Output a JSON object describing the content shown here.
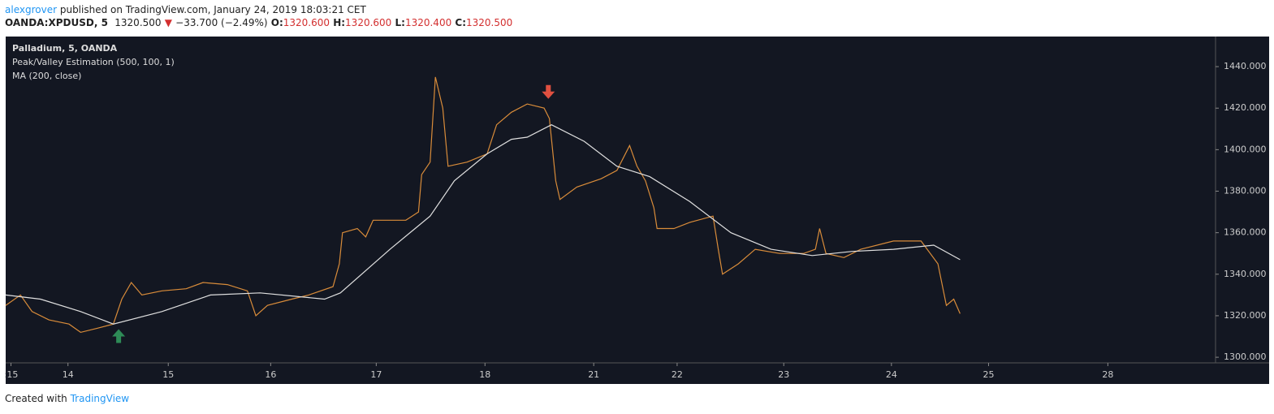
{
  "header": {
    "author": "alexgrover",
    "published": "published on TradingView.com, January 24, 2019 18:03:21 CET",
    "symbol": "OANDA:XPDUSD, 5",
    "last": "1320.500",
    "arrow": "▼",
    "change": "−33.700 (−2.49%)",
    "o_label": "O:",
    "o": "1320.600",
    "h_label": "H:",
    "h": "1320.600",
    "l_label": "L:",
    "l": "1320.400",
    "c_label": "C:",
    "c": "1320.500"
  },
  "footer": {
    "created": "Created with",
    "brand": "TradingView"
  },
  "chart_data": {
    "type": "line",
    "legend": [
      "Palladium, 5, OANDA",
      "Peak/Valley Estimation (500, 100, 1)",
      "MA (200, close)"
    ],
    "xlim": [
      -0.59,
      10.87
    ],
    "ylim": [
      1297.3,
      1454.5
    ],
    "xticks": [
      {
        "value": -0.54,
        "label": ":15"
      },
      {
        "value": 0,
        "label": "14"
      },
      {
        "value": 0.95,
        "label": "15"
      },
      {
        "value": 1.92,
        "label": "16"
      },
      {
        "value": 2.92,
        "label": "17"
      },
      {
        "value": 3.95,
        "label": "18"
      },
      {
        "value": 4.98,
        "label": "21"
      },
      {
        "value": 5.77,
        "label": "22"
      },
      {
        "value": 6.78,
        "label": "23"
      },
      {
        "value": 7.8,
        "label": "24"
      },
      {
        "value": 8.72,
        "label": "25"
      },
      {
        "value": 9.85,
        "label": "28"
      }
    ],
    "yticks": [
      {
        "value": 1300,
        "label": "1300.000"
      },
      {
        "value": 1320,
        "label": "1320.000"
      },
      {
        "value": 1340,
        "label": "1340.000"
      },
      {
        "value": 1360,
        "label": "1360.000"
      },
      {
        "value": 1380,
        "label": "1380.000"
      },
      {
        "value": 1400,
        "label": "1400.000"
      },
      {
        "value": 1420,
        "label": "1420.000"
      },
      {
        "value": 1440,
        "label": "1440.000"
      }
    ],
    "series": [
      {
        "color": "#d98c3a",
        "x": [
          -0.59,
          -0.45,
          -0.34,
          -0.18,
          0.01,
          0.12,
          0.28,
          0.43,
          0.51,
          0.6,
          0.7,
          0.89,
          1.12,
          1.28,
          1.51,
          1.7,
          1.78,
          1.89,
          2.12,
          2.28,
          2.51,
          2.57,
          2.6,
          2.74,
          2.82,
          2.89,
          3.2,
          3.32,
          3.35,
          3.43,
          3.48,
          3.55,
          3.6,
          3.78,
          3.97,
          4.06,
          4.2,
          4.35,
          4.51,
          4.56,
          4.58,
          4.62,
          4.66,
          4.82,
          5.05,
          5.2,
          5.32,
          5.39,
          5.47,
          5.55,
          5.58,
          5.74,
          5.89,
          6.11,
          6.16,
          6.2,
          6.35,
          6.51,
          6.74,
          6.97,
          7.08,
          7.12,
          7.18,
          7.35,
          7.51,
          7.82,
          8.08,
          8.24,
          8.32,
          8.39,
          8.45
        ],
        "values": [
          1325,
          1330,
          1322,
          1318,
          1316,
          1312,
          1314,
          1316,
          1328,
          1336,
          1330,
          1332,
          1333,
          1336,
          1335,
          1332,
          1320,
          1325,
          1328,
          1330,
          1334,
          1345,
          1360,
          1362,
          1358,
          1366,
          1366,
          1370,
          1388,
          1394,
          1435,
          1420,
          1392,
          1394,
          1398,
          1412,
          1418,
          1422,
          1420,
          1415,
          1405,
          1385,
          1376,
          1382,
          1386,
          1390,
          1402,
          1392,
          1385,
          1372,
          1362,
          1362,
          1365,
          1368,
          1352,
          1340,
          1345,
          1352,
          1350,
          1350,
          1352,
          1362,
          1350,
          1348,
          1352,
          1356,
          1356,
          1345,
          1325,
          1328,
          1321
        ]
      },
      {
        "color": "#e0e0e0",
        "x": [
          -0.59,
          -0.26,
          0.12,
          0.43,
          0.89,
          1.35,
          1.82,
          2.43,
          2.58,
          3.05,
          3.43,
          3.66,
          3.97,
          4.2,
          4.35,
          4.58,
          4.89,
          5.2,
          5.51,
          5.89,
          6.28,
          6.66,
          7.05,
          7.43,
          7.82,
          8.2,
          8.45
        ],
        "values": [
          1330,
          1328,
          1322,
          1316,
          1322,
          1330,
          1331,
          1328,
          1331,
          1352,
          1368,
          1385,
          1398,
          1405,
          1406,
          1412,
          1404,
          1392,
          1387,
          1375,
          1360,
          1352,
          1349,
          1351,
          1352,
          1354,
          1347
        ]
      }
    ],
    "signals": [
      {
        "x": 0.48,
        "y": 1310,
        "color": "#2e8b57"
      },
      {
        "x": 4.55,
        "y": 1428,
        "color": "#e05040"
      }
    ]
  }
}
